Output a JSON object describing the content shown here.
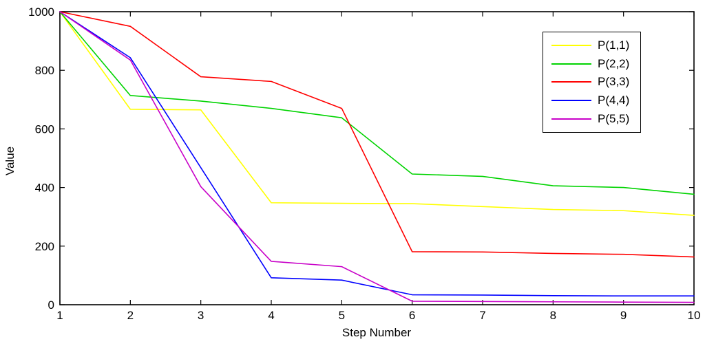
{
  "figure": {
    "background_color": "#FFFFFF",
    "axis_color": "#000000",
    "text_color": "#000000"
  },
  "chart_data": {
    "type": "line",
    "title": "",
    "xlabel": "Step Number",
    "ylabel": "Value",
    "x": [
      1,
      2,
      3,
      4,
      5,
      6,
      7,
      8,
      9,
      10
    ],
    "xlim": [
      1,
      10
    ],
    "ylim": [
      0,
      1000
    ],
    "xticks": [
      1,
      2,
      3,
      4,
      5,
      6,
      7,
      8,
      9,
      10
    ],
    "yticks": [
      0,
      200,
      400,
      600,
      800,
      1000
    ],
    "grid": false,
    "tick_direction": "in",
    "box": true,
    "legend_position": "top-right",
    "series": [
      {
        "name": "P(1,1)",
        "color": "#FFFF00",
        "values": [
          1000,
          667,
          665,
          348,
          346,
          345,
          335,
          325,
          321,
          305
        ]
      },
      {
        "name": "P(2,2)",
        "color": "#00D300",
        "values": [
          1000,
          714,
          695,
          670,
          638,
          446,
          438,
          406,
          400,
          377
        ]
      },
      {
        "name": "P(3,3)",
        "color": "#FF0000",
        "values": [
          1000,
          950,
          778,
          762,
          670,
          181,
          180,
          175,
          172,
          163
        ]
      },
      {
        "name": "P(4,4)",
        "color": "#0000FF",
        "values": [
          1000,
          843,
          468,
          92,
          84,
          34,
          33,
          31,
          30,
          30
        ]
      },
      {
        "name": "P(5,5)",
        "color": "#C800C8",
        "values": [
          1000,
          835,
          403,
          148,
          130,
          12,
          11,
          10,
          9,
          8
        ]
      }
    ]
  }
}
